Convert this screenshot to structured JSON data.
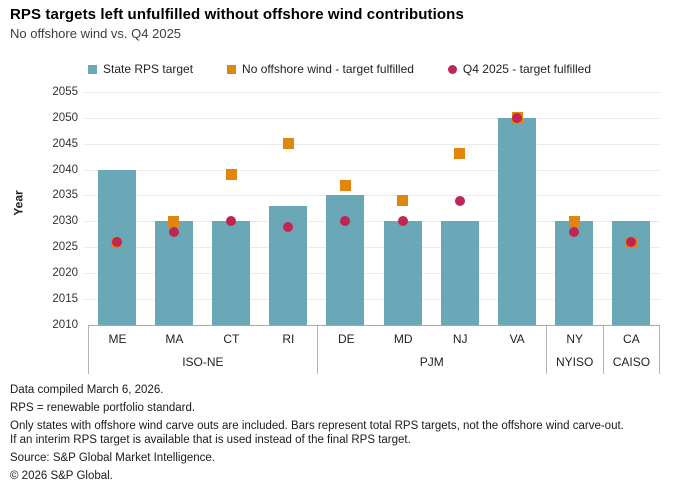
{
  "chart_data": {
    "type": "bar",
    "title": "RPS targets left unfulfilled without offshore wind contributions",
    "subtitle": "No offshore wind vs. Q4 2025",
    "ylabel": "Year",
    "ylim": [
      2010,
      2056.5
    ],
    "yticks": [
      2010,
      2015,
      2020,
      2025,
      2030,
      2035,
      2040,
      2045,
      2050,
      2055
    ],
    "baseline": 2010,
    "grid": "horizontal",
    "legend_position": "top",
    "categories": [
      "ME",
      "MA",
      "CT",
      "RI",
      "DE",
      "MD",
      "NJ",
      "VA",
      "NY",
      "CA"
    ],
    "groups": [
      {
        "label": "ISO-NE",
        "states": [
          "ME",
          "MA",
          "CT",
          "RI"
        ]
      },
      {
        "label": "PJM",
        "states": [
          "DE",
          "MD",
          "NJ",
          "VA"
        ]
      },
      {
        "label": "NYISO",
        "states": [
          "NY"
        ]
      },
      {
        "label": "CAISO",
        "states": [
          "CA"
        ]
      }
    ],
    "colors": {
      "bar": "#6AA7B7",
      "no_offshore_wind": "#E2850F",
      "q4_2025": "#C02554",
      "gridline": "#EBEBEB"
    },
    "legend": [
      {
        "label": "State RPS target",
        "shape": "square",
        "color_key": "bar"
      },
      {
        "label": "No offshore wind - target fulfilled",
        "shape": "square",
        "color_key": "no_offshore_wind"
      },
      {
        "label": "Q4 2025 - target fulfilled",
        "shape": "circle",
        "color_key": "q4_2025"
      }
    ],
    "series": [
      {
        "name": "State RPS target",
        "type": "bar",
        "values": [
          2040,
          2030,
          2030,
          2033,
          2035,
          2030,
          2030,
          2050,
          2030,
          2030
        ]
      },
      {
        "name": "No offshore wind - target fulfilled",
        "type": "square",
        "values": [
          2026,
          2030,
          2039,
          2045,
          2037,
          2034,
          2043,
          2050,
          2030,
          2026
        ]
      },
      {
        "name": "Q4 2025 - target fulfilled",
        "type": "circle",
        "values": [
          2026,
          2028,
          2030,
          2029,
          2030,
          2030,
          2034,
          2050,
          2028,
          2026
        ]
      }
    ]
  },
  "footer": {
    "lines": [
      "Data compiled March 6, 2026.",
      "RPS = renewable portfolio standard.",
      "Only states with offshore wind carve outs are included. Bars represent total RPS targets, not the offshore wind carve-out.",
      "If an interim RPS target is available that is used instead of the final RPS target.",
      "Source: S&P Global Market Intelligence.",
      "© 2026 S&P Global."
    ]
  }
}
